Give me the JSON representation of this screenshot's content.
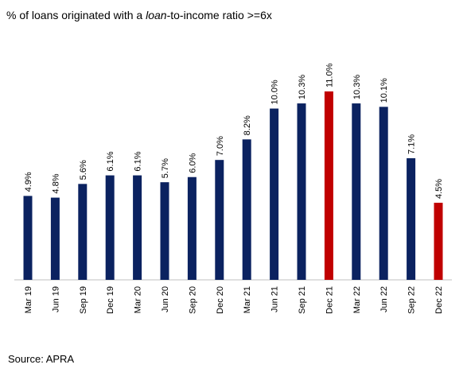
{
  "chart_data": {
    "type": "bar",
    "title": [
      "% of loans originated with a ",
      "loan",
      "-to-income ratio >=6x"
    ],
    "categories": [
      "Mar 19",
      "Jun 19",
      "Sep 19",
      "Dec 19",
      "Mar 20",
      "Jun 20",
      "Sep 20",
      "Dec 20",
      "Mar 21",
      "Jun 21",
      "Sep 21",
      "Dec 21",
      "Mar 22",
      "Jun 22",
      "Sep 22",
      "Dec 22"
    ],
    "values": [
      4.9,
      4.8,
      5.6,
      6.1,
      6.1,
      5.7,
      6.0,
      7.0,
      8.2,
      10.0,
      10.3,
      11.0,
      10.3,
      10.1,
      7.1,
      4.5
    ],
    "value_labels": [
      "4.9%",
      "4.8%",
      "5.6%",
      "6.1%",
      "6.1%",
      "5.7%",
      "6.0%",
      "7.0%",
      "8.2%",
      "10.0%",
      "10.3%",
      "11.0%",
      "10.3%",
      "10.1%",
      "7.1%",
      "4.5%"
    ],
    "colors": [
      "#0b2260",
      "#0b2260",
      "#0b2260",
      "#0b2260",
      "#0b2260",
      "#0b2260",
      "#0b2260",
      "#0b2260",
      "#0b2260",
      "#0b2260",
      "#0b2260",
      "#c00000",
      "#0b2260",
      "#0b2260",
      "#0b2260",
      "#c00000"
    ],
    "source": "Source: APRA"
  }
}
